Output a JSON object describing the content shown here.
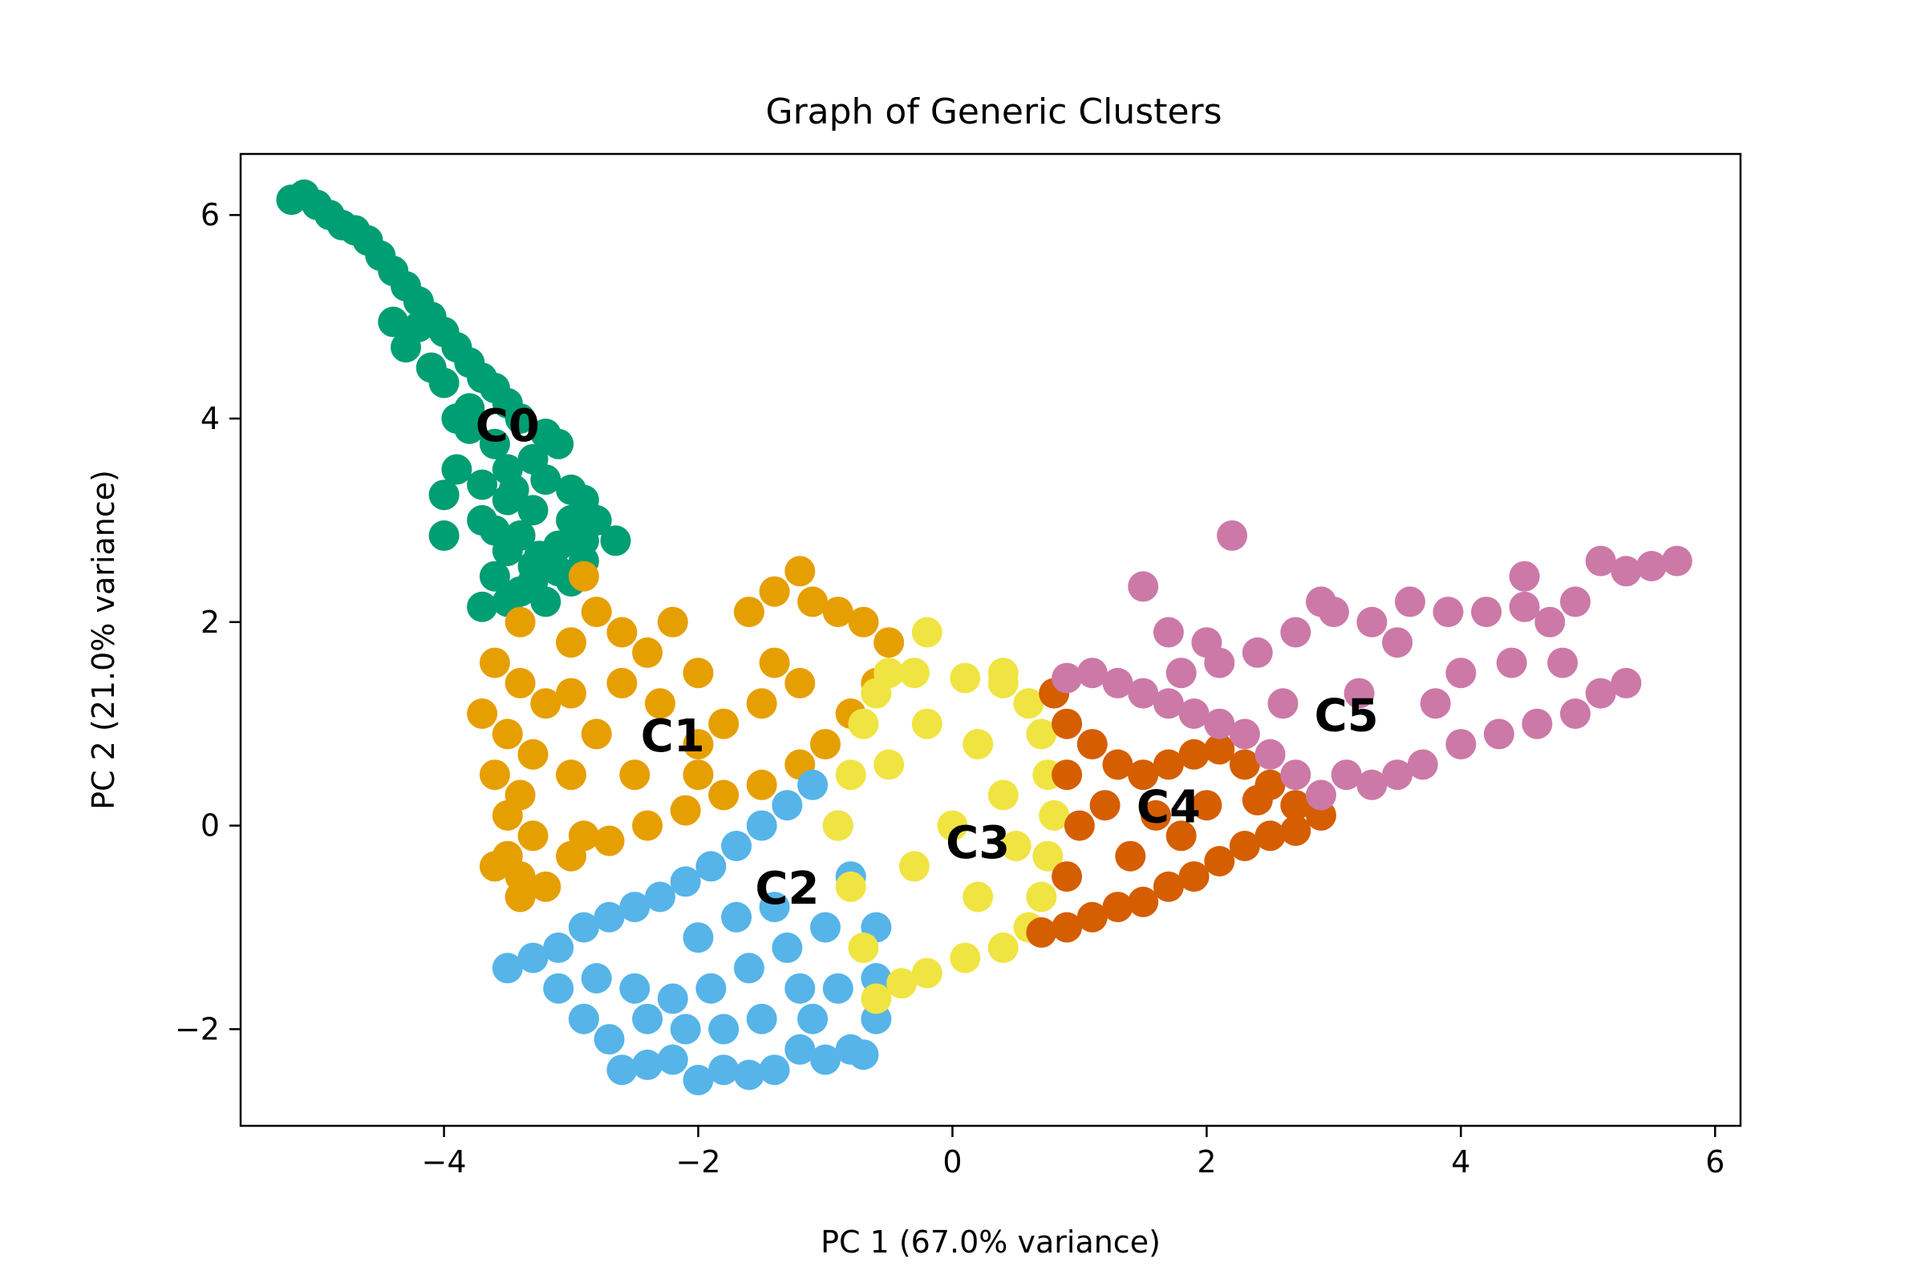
{
  "chart_data": {
    "type": "scatter",
    "title": "Graph of Generic Clusters",
    "xlabel": "PC 1 (67.0% variance)",
    "ylabel": "PC 2 (21.0% variance)",
    "xlim": [
      -5.6,
      6.2
    ],
    "ylim": [
      -2.95,
      6.6
    ],
    "x_ticks": [
      -4,
      -2,
      0,
      2,
      4,
      6
    ],
    "y_ticks": [
      -2,
      0,
      2,
      4,
      6
    ],
    "x_tick_labels": [
      "−4",
      "−2",
      "0",
      "2",
      "4",
      "6"
    ],
    "y_tick_labels": [
      "−2",
      "0",
      "2",
      "4",
      "6"
    ],
    "grid": false,
    "legend": "none",
    "clusters": [
      {
        "label": "C0",
        "color": "#009E73",
        "label_position": [
          -3.5,
          3.9
        ],
        "points": [
          [
            -5.2,
            6.15
          ],
          [
            -5.1,
            6.2
          ],
          [
            -5.0,
            6.1
          ],
          [
            -4.9,
            6.0
          ],
          [
            -4.8,
            5.9
          ],
          [
            -4.7,
            5.85
          ],
          [
            -4.6,
            5.75
          ],
          [
            -4.5,
            5.6
          ],
          [
            -4.4,
            5.45
          ],
          [
            -4.3,
            5.3
          ],
          [
            -4.2,
            5.15
          ],
          [
            -4.1,
            5.0
          ],
          [
            -4.4,
            4.95
          ],
          [
            -4.0,
            4.85
          ],
          [
            -3.9,
            4.7
          ],
          [
            -4.3,
            4.7
          ],
          [
            -3.8,
            4.55
          ],
          [
            -4.1,
            4.5
          ],
          [
            -3.7,
            4.4
          ],
          [
            -3.6,
            4.3
          ],
          [
            -4.0,
            4.35
          ],
          [
            -3.5,
            4.15
          ],
          [
            -3.8,
            4.1
          ],
          [
            -3.9,
            4.0
          ],
          [
            -3.4,
            4.0
          ],
          [
            -3.2,
            3.85
          ],
          [
            -3.6,
            3.75
          ],
          [
            -3.1,
            3.75
          ],
          [
            -3.3,
            3.6
          ],
          [
            -3.9,
            3.5
          ],
          [
            -3.5,
            3.5
          ],
          [
            -3.7,
            3.35
          ],
          [
            -3.2,
            3.4
          ],
          [
            -3.0,
            3.3
          ],
          [
            -4.0,
            3.25
          ],
          [
            -3.5,
            3.2
          ],
          [
            -2.9,
            3.2
          ],
          [
            -3.3,
            3.1
          ],
          [
            -3.7,
            3.0
          ],
          [
            -3.0,
            3.0
          ],
          [
            -2.8,
            3.0
          ],
          [
            -4.0,
            2.85
          ],
          [
            -3.4,
            2.85
          ],
          [
            -2.65,
            2.8
          ],
          [
            -3.1,
            2.75
          ],
          [
            -3.5,
            2.7
          ],
          [
            -2.9,
            2.6
          ],
          [
            -3.3,
            2.55
          ],
          [
            -3.6,
            2.45
          ],
          [
            -3.0,
            2.4
          ],
          [
            -3.4,
            2.3
          ],
          [
            -3.2,
            2.2
          ],
          [
            -3.7,
            2.15
          ],
          [
            -3.5,
            2.2
          ],
          [
            -3.3,
            2.4
          ],
          [
            -2.9,
            2.8
          ],
          [
            -3.1,
            2.5
          ],
          [
            -3.6,
            2.9
          ],
          [
            -3.25,
            2.65
          ],
          [
            -3.45,
            3.3
          ],
          [
            -3.8,
            3.9
          ],
          [
            -4.2,
            4.9
          ]
        ]
      },
      {
        "label": "C1",
        "color": "#E69F00",
        "label_position": [
          -2.2,
          0.85
        ],
        "points": [
          [
            -3.6,
            1.6
          ],
          [
            -3.4,
            1.4
          ],
          [
            -3.2,
            1.2
          ],
          [
            -3.7,
            1.1
          ],
          [
            -3.5,
            0.9
          ],
          [
            -3.3,
            0.7
          ],
          [
            -3.6,
            0.5
          ],
          [
            -3.4,
            0.3
          ],
          [
            -3.5,
            0.1
          ],
          [
            -3.3,
            -0.1
          ],
          [
            -3.5,
            -0.3
          ],
          [
            -3.4,
            -0.5
          ],
          [
            -3.2,
            -0.6
          ],
          [
            -3.6,
            -0.4
          ],
          [
            -3.4,
            -0.7
          ],
          [
            -3.0,
            1.8
          ],
          [
            -2.8,
            2.1
          ],
          [
            -2.9,
            2.45
          ],
          [
            -3.4,
            2.0
          ],
          [
            -2.6,
            1.9
          ],
          [
            -2.4,
            1.7
          ],
          [
            -2.2,
            2.0
          ],
          [
            -2.0,
            1.5
          ],
          [
            -1.6,
            2.1
          ],
          [
            -1.4,
            2.3
          ],
          [
            -1.2,
            2.5
          ],
          [
            -1.1,
            2.2
          ],
          [
            -0.9,
            2.1
          ],
          [
            -0.7,
            2.0
          ],
          [
            -0.5,
            1.8
          ],
          [
            -0.6,
            1.4
          ],
          [
            -0.8,
            1.1
          ],
          [
            -1.0,
            0.8
          ],
          [
            -1.2,
            0.6
          ],
          [
            -1.5,
            0.4
          ],
          [
            -1.8,
            0.3
          ],
          [
            -2.1,
            0.15
          ],
          [
            -2.4,
            0.0
          ],
          [
            -2.7,
            -0.15
          ],
          [
            -3.0,
            -0.3
          ],
          [
            -2.5,
            0.5
          ],
          [
            -2.0,
            0.8
          ],
          [
            -1.5,
            1.2
          ],
          [
            -2.8,
            0.9
          ],
          [
            -2.3,
            1.2
          ],
          [
            -3.0,
            0.5
          ],
          [
            -1.8,
            1.0
          ],
          [
            -1.2,
            1.4
          ],
          [
            -1.4,
            1.6
          ],
          [
            -2.6,
            1.4
          ],
          [
            -3.0,
            1.3
          ],
          [
            -2.0,
            0.5
          ],
          [
            -2.9,
            -0.1
          ]
        ]
      },
      {
        "label": "C2",
        "color": "#56B4E9",
        "label_position": [
          -1.3,
          -0.65
        ],
        "points": [
          [
            -3.5,
            -1.4
          ],
          [
            -3.3,
            -1.3
          ],
          [
            -3.1,
            -1.2
          ],
          [
            -2.9,
            -1.0
          ],
          [
            -2.7,
            -0.9
          ],
          [
            -2.5,
            -0.8
          ],
          [
            -2.3,
            -0.7
          ],
          [
            -2.1,
            -0.55
          ],
          [
            -1.9,
            -0.4
          ],
          [
            -1.7,
            -0.2
          ],
          [
            -1.5,
            0.0
          ],
          [
            -1.3,
            0.2
          ],
          [
            -1.1,
            0.4
          ],
          [
            -0.9,
            0.0
          ],
          [
            -0.8,
            -0.5
          ],
          [
            -0.6,
            -1.0
          ],
          [
            -0.6,
            -1.5
          ],
          [
            -0.6,
            -1.9
          ],
          [
            -0.8,
            -2.2
          ],
          [
            -1.0,
            -2.3
          ],
          [
            -1.2,
            -2.2
          ],
          [
            -1.4,
            -2.4
          ],
          [
            -1.6,
            -2.45
          ],
          [
            -1.8,
            -2.4
          ],
          [
            -2.0,
            -2.5
          ],
          [
            -2.2,
            -2.3
          ],
          [
            -2.4,
            -2.35
          ],
          [
            -2.6,
            -2.4
          ],
          [
            -2.7,
            -2.1
          ],
          [
            -2.9,
            -1.9
          ],
          [
            -3.1,
            -1.6
          ],
          [
            -2.8,
            -1.5
          ],
          [
            -2.5,
            -1.6
          ],
          [
            -2.2,
            -1.7
          ],
          [
            -1.9,
            -1.6
          ],
          [
            -1.6,
            -1.4
          ],
          [
            -1.3,
            -1.2
          ],
          [
            -1.0,
            -1.0
          ],
          [
            -1.2,
            -1.6
          ],
          [
            -1.5,
            -1.9
          ],
          [
            -1.8,
            -2.0
          ],
          [
            -2.1,
            -2.0
          ],
          [
            -2.4,
            -1.9
          ],
          [
            -1.4,
            -0.8
          ],
          [
            -1.7,
            -0.9
          ],
          [
            -2.0,
            -1.1
          ],
          [
            -0.9,
            -1.6
          ],
          [
            -0.7,
            -2.25
          ],
          [
            -1.1,
            -1.9
          ]
        ]
      },
      {
        "label": "C3",
        "color": "#F0E442",
        "label_position": [
          0.2,
          -0.2
        ],
        "points": [
          [
            -0.5,
            1.5
          ],
          [
            -0.3,
            1.5
          ],
          [
            0.1,
            1.45
          ],
          [
            0.4,
            1.4
          ],
          [
            0.6,
            1.2
          ],
          [
            0.7,
            0.9
          ],
          [
            0.75,
            0.5
          ],
          [
            0.8,
            0.1
          ],
          [
            0.75,
            -0.3
          ],
          [
            0.7,
            -0.7
          ],
          [
            0.6,
            -1.0
          ],
          [
            0.4,
            -1.2
          ],
          [
            0.1,
            -1.3
          ],
          [
            -0.2,
            -1.45
          ],
          [
            -0.4,
            -1.55
          ],
          [
            -0.6,
            -1.7
          ],
          [
            -0.7,
            -1.2
          ],
          [
            -0.8,
            -0.6
          ],
          [
            -0.9,
            0.0
          ],
          [
            -0.8,
            0.5
          ],
          [
            -0.7,
            1.0
          ],
          [
            -0.6,
            1.3
          ],
          [
            -0.2,
            1.0
          ],
          [
            0.2,
            0.8
          ],
          [
            0.4,
            0.3
          ],
          [
            0.0,
            0.0
          ],
          [
            -0.3,
            -0.4
          ],
          [
            0.2,
            -0.7
          ],
          [
            -0.5,
            0.6
          ],
          [
            0.5,
            -0.2
          ],
          [
            -0.2,
            1.9
          ],
          [
            0.4,
            1.5
          ]
        ]
      },
      {
        "label": "C4",
        "color": "#D55E00",
        "label_position": [
          1.7,
          0.15
        ],
        "points": [
          [
            0.8,
            1.3
          ],
          [
            0.9,
            1.0
          ],
          [
            1.1,
            0.8
          ],
          [
            1.3,
            0.6
          ],
          [
            1.5,
            0.5
          ],
          [
            1.7,
            0.6
          ],
          [
            1.9,
            0.7
          ],
          [
            2.1,
            0.75
          ],
          [
            2.3,
            0.6
          ],
          [
            2.5,
            0.4
          ],
          [
            2.7,
            0.2
          ],
          [
            2.9,
            0.1
          ],
          [
            2.7,
            -0.05
          ],
          [
            2.5,
            -0.1
          ],
          [
            2.3,
            -0.2
          ],
          [
            2.1,
            -0.35
          ],
          [
            1.9,
            -0.5
          ],
          [
            1.7,
            -0.6
          ],
          [
            1.5,
            -0.75
          ],
          [
            1.3,
            -0.8
          ],
          [
            1.1,
            -0.9
          ],
          [
            0.9,
            -1.0
          ],
          [
            0.7,
            -1.05
          ],
          [
            0.9,
            -0.5
          ],
          [
            1.0,
            0.0
          ],
          [
            0.9,
            0.5
          ],
          [
            1.2,
            0.2
          ],
          [
            1.6,
            0.1
          ],
          [
            2.0,
            0.2
          ],
          [
            1.4,
            -0.3
          ],
          [
            1.8,
            -0.1
          ],
          [
            2.4,
            0.25
          ]
        ]
      },
      {
        "label": "C5",
        "color": "#CC79A7",
        "label_position": [
          3.1,
          1.05
        ],
        "points": [
          [
            0.9,
            1.45
          ],
          [
            1.1,
            1.5
          ],
          [
            1.3,
            1.4
          ],
          [
            1.5,
            1.3
          ],
          [
            1.7,
            1.2
          ],
          [
            1.9,
            1.1
          ],
          [
            2.1,
            1.0
          ],
          [
            2.3,
            0.9
          ],
          [
            2.5,
            0.7
          ],
          [
            2.7,
            0.5
          ],
          [
            2.9,
            0.3
          ],
          [
            3.1,
            0.5
          ],
          [
            3.3,
            0.4
          ],
          [
            3.5,
            0.5
          ],
          [
            3.7,
            0.6
          ],
          [
            4.0,
            0.8
          ],
          [
            4.3,
            0.9
          ],
          [
            4.6,
            1.0
          ],
          [
            4.9,
            1.1
          ],
          [
            5.1,
            1.3
          ],
          [
            5.3,
            1.4
          ],
          [
            5.1,
            2.6
          ],
          [
            5.3,
            2.5
          ],
          [
            5.5,
            2.55
          ],
          [
            5.7,
            2.6
          ],
          [
            4.9,
            2.2
          ],
          [
            4.7,
            2.0
          ],
          [
            4.5,
            2.15
          ],
          [
            4.2,
            2.1
          ],
          [
            3.9,
            2.1
          ],
          [
            3.6,
            2.2
          ],
          [
            3.3,
            2.0
          ],
          [
            3.0,
            2.1
          ],
          [
            2.7,
            1.9
          ],
          [
            2.4,
            1.7
          ],
          [
            2.1,
            1.6
          ],
          [
            1.8,
            1.5
          ],
          [
            1.5,
            2.35
          ],
          [
            2.2,
            2.85
          ],
          [
            2.9,
            2.2
          ],
          [
            3.5,
            1.8
          ],
          [
            4.0,
            1.5
          ],
          [
            4.4,
            1.6
          ],
          [
            3.8,
            1.2
          ],
          [
            3.2,
            1.3
          ],
          [
            2.6,
            1.2
          ],
          [
            4.8,
            1.6
          ],
          [
            4.5,
            2.45
          ],
          [
            1.7,
            1.9
          ],
          [
            2.0,
            1.8
          ]
        ]
      }
    ]
  }
}
